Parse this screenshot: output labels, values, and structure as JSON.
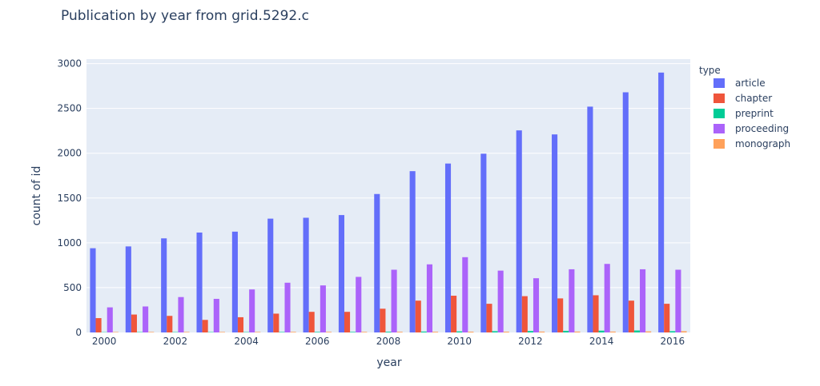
{
  "chart_data": {
    "type": "bar",
    "title": "Publication by year from grid.5292.c",
    "xlabel": "year",
    "ylabel": "count of id",
    "ylim": [
      0,
      3050
    ],
    "yticks": [
      0,
      500,
      1000,
      1500,
      2000,
      2500,
      3000
    ],
    "ytick_labels": [
      "0",
      "500",
      "1000",
      "1500",
      "2000",
      "2500",
      "3000"
    ],
    "xtick_labels": [
      "2000",
      "2002",
      "2004",
      "2006",
      "2008",
      "2010",
      "2012",
      "2014",
      "2016"
    ],
    "xticks": [
      2000,
      2002,
      2004,
      2006,
      2008,
      2010,
      2012,
      2014,
      2016
    ],
    "categories": [
      2000,
      2001,
      2002,
      2003,
      2004,
      2005,
      2006,
      2007,
      2008,
      2009,
      2010,
      2011,
      2012,
      2013,
      2014,
      2015,
      2016
    ],
    "legend_title": "type",
    "legend_position": "right",
    "series": [
      {
        "name": "article",
        "color": "#636efa",
        "values": [
          940,
          960,
          1050,
          1115,
          1125,
          1270,
          1280,
          1310,
          1545,
          1800,
          1885,
          1995,
          2255,
          2210,
          2520,
          2680,
          2900
        ]
      },
      {
        "name": "chapter",
        "color": "#ef553b",
        "values": [
          160,
          200,
          185,
          140,
          170,
          210,
          230,
          230,
          265,
          355,
          410,
          320,
          405,
          380,
          415,
          355,
          320
        ]
      },
      {
        "name": "preprint",
        "color": "#00cc96",
        "values": [
          3,
          4,
          4,
          4,
          4,
          5,
          6,
          6,
          8,
          10,
          12,
          14,
          16,
          18,
          20,
          22,
          14
        ]
      },
      {
        "name": "proceeding",
        "color": "#ab63fa",
        "values": [
          280,
          290,
          395,
          375,
          480,
          555,
          525,
          620,
          700,
          760,
          840,
          690,
          605,
          705,
          765,
          705,
          700
        ]
      },
      {
        "name": "monograph",
        "color": "#ffa15a",
        "values": [
          5,
          6,
          6,
          6,
          6,
          7,
          7,
          7,
          8,
          8,
          9,
          9,
          10,
          10,
          10,
          12,
          14
        ]
      }
    ]
  }
}
